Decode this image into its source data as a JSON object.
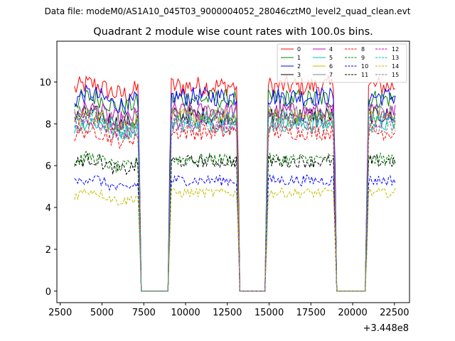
{
  "header": {
    "data_file": "Data file: modeM0/AS1A10_045T03_9000004052_28046cztM0_level2_quad_clean.evt"
  },
  "chart_data": {
    "type": "line",
    "title": "Quadrant 2 module wise count rates with 100.0s bins.",
    "xlabel": "",
    "ylabel": "",
    "x_offset_label": "+3.448e8",
    "xlim": [
      2300,
      23400
    ],
    "ylim": [
      -0.55,
      11.95
    ],
    "x_ticks": [
      2500,
      5000,
      7500,
      10000,
      12500,
      15000,
      17500,
      20000,
      22500
    ],
    "x_tick_labels": [
      "2500",
      "5000",
      "7500",
      "10000",
      "12500",
      "15000",
      "17500",
      "20000",
      "22500"
    ],
    "y_ticks": [
      0,
      2,
      4,
      6,
      8,
      10
    ],
    "y_tick_labels": [
      "0",
      "2",
      "4",
      "6",
      "8",
      "10"
    ],
    "x_start": 3350,
    "x_end": 22550,
    "bin_width": 100,
    "segments": [
      [
        3350,
        7150
      ],
      [
        9150,
        13050
      ],
      [
        14950,
        18850
      ],
      [
        20950,
        22550
      ]
    ],
    "gaps": [
      [
        7350,
        8950
      ],
      [
        13250,
        14750
      ],
      [
        19050,
        20750
      ]
    ],
    "gap_value": 0,
    "legend": {
      "location": "upper-right",
      "columns": 4
    },
    "series": [
      {
        "name": "0",
        "color": "#ff0000",
        "dash": "solid",
        "mean": 9.8
      },
      {
        "name": "1",
        "color": "#008000",
        "dash": "solid",
        "mean": 9.2
      },
      {
        "name": "2",
        "color": "#0000ff",
        "dash": "solid",
        "mean": 9.3
      },
      {
        "name": "3",
        "color": "#000000",
        "dash": "solid",
        "mean": 8.4
      },
      {
        "name": "4",
        "color": "#bf00bf",
        "dash": "solid",
        "mean": 8.6
      },
      {
        "name": "5",
        "color": "#00bfbf",
        "dash": "solid",
        "mean": 8.0
      },
      {
        "name": "6",
        "color": "#bfbf00",
        "dash": "solid",
        "mean": 8.3
      },
      {
        "name": "7",
        "color": "#808080",
        "dash": "solid",
        "mean": 8.5
      },
      {
        "name": "8",
        "color": "#ff0000",
        "dash": "dashed",
        "mean": 7.6
      },
      {
        "name": "9",
        "color": "#008000",
        "dash": "dashed",
        "mean": 6.3
      },
      {
        "name": "10",
        "color": "#0000ff",
        "dash": "dashed",
        "mean": 5.3
      },
      {
        "name": "11",
        "color": "#000000",
        "dash": "dashed",
        "mean": 6.2
      },
      {
        "name": "12",
        "color": "#bf00bf",
        "dash": "dashed",
        "mean": 8.1
      },
      {
        "name": "13",
        "color": "#00bfbf",
        "dash": "dashed",
        "mean": 8.2
      },
      {
        "name": "14",
        "color": "#bfbf00",
        "dash": "dashed",
        "mean": 4.7
      },
      {
        "name": "15",
        "color": "#808080",
        "dash": "dashed",
        "mean": 7.9
      }
    ]
  }
}
